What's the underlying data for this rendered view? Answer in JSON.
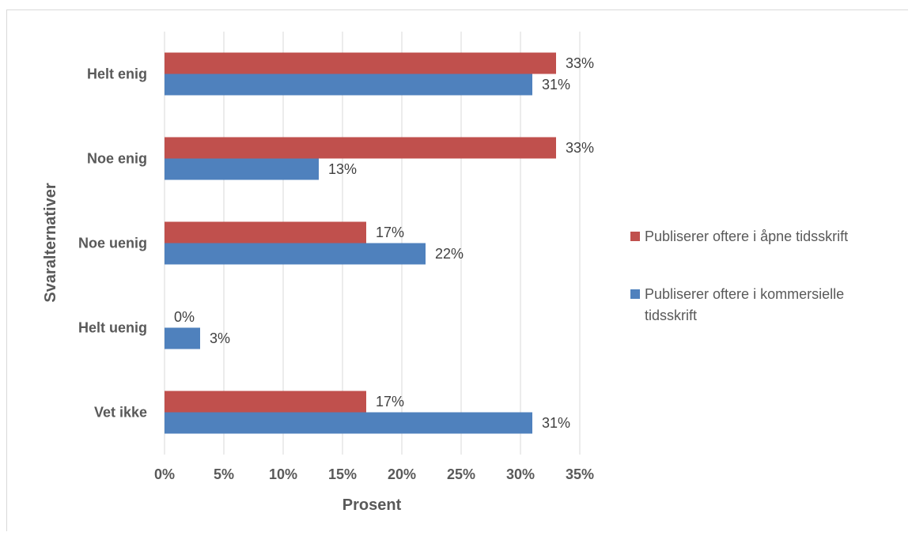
{
  "chart_data": {
    "type": "bar",
    "orientation": "horizontal",
    "categories": [
      "Helt enig",
      "Noe enig",
      "Noe uenig",
      "Helt uenig",
      "Vet ikke"
    ],
    "series": [
      {
        "name": "Publiserer oftere i åpne tidsskrift",
        "color": "#C0504D",
        "values": [
          33,
          33,
          17,
          0,
          17
        ],
        "labels": [
          "33%",
          "33%",
          "17%",
          "0%",
          "17%"
        ]
      },
      {
        "name": "Publiserer oftere i kommersielle tidsskrift",
        "color": "#4F81BD",
        "values": [
          31,
          13,
          22,
          3,
          31
        ],
        "labels": [
          "31%",
          "13%",
          "22%",
          "3%",
          "31%"
        ]
      }
    ],
    "xlim": [
      0,
      35
    ],
    "xticks": [
      "0%",
      "5%",
      "10%",
      "15%",
      "20%",
      "25%",
      "30%",
      "35%"
    ],
    "xlabel": "Prosent",
    "ylabel": "Svaralternativer",
    "grid": "vertical",
    "legend_position": "right"
  },
  "legend": {
    "item0": "Publiserer oftere i åpne tidsskrift",
    "item1_line1": "Publiserer oftere i kommersielle",
    "item1_line2": "tidsskrift"
  }
}
